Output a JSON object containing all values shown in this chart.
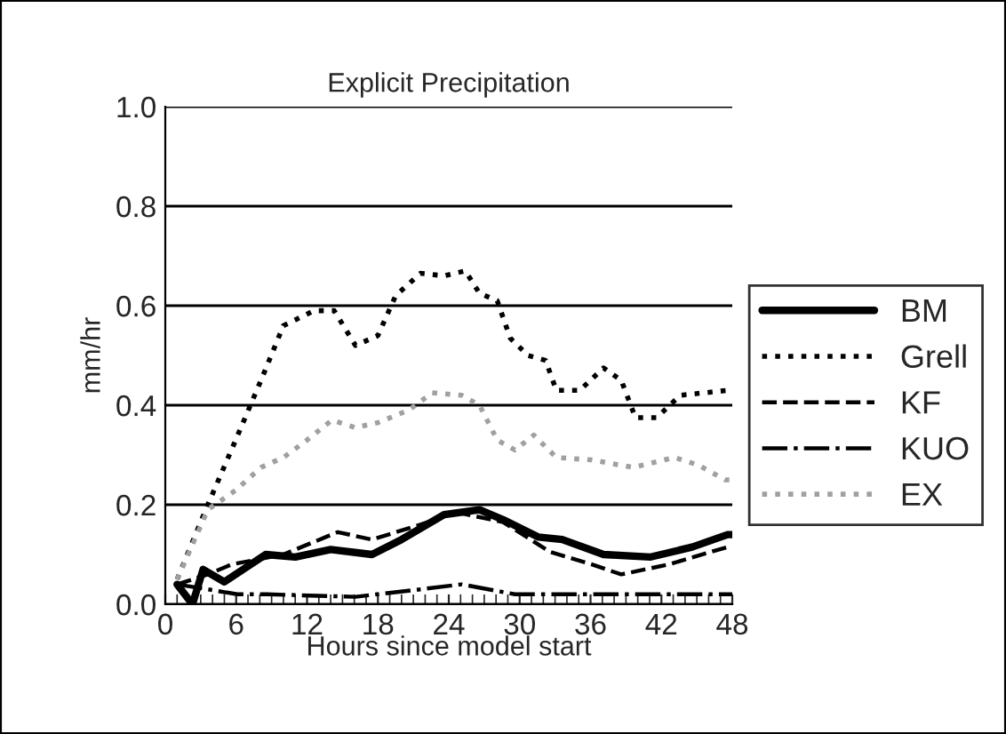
{
  "chart_data": {
    "type": "line",
    "title": "Explicit Precipitation",
    "xlabel": "Hours since model start",
    "ylabel": "mm/hr",
    "xlim": [
      0,
      48
    ],
    "xticks": [
      0,
      6,
      12,
      18,
      24,
      30,
      36,
      42,
      48
    ],
    "ylim": [
      0,
      1.0
    ],
    "yticks": [
      {
        "value": 0,
        "label": "0.0"
      },
      {
        "value": 0.2,
        "label": "0.2"
      },
      {
        "value": 0.4,
        "label": "0.4"
      },
      {
        "value": 0.6,
        "label": "0.6"
      },
      {
        "value": 0.8,
        "label": "0.8"
      },
      {
        "value": 1.0,
        "label": "1.0"
      }
    ],
    "grid": "y",
    "legend": "right",
    "marker": "none",
    "series": [
      {
        "name": "BM",
        "color": "#000000",
        "line_style": "solid",
        "x": [
          1,
          2.3,
          3.2,
          5,
          8.5,
          11,
          14,
          17.5,
          20,
          23.6,
          26.6,
          28.6,
          31.6,
          33.6,
          37.1,
          41.1,
          44.6,
          47.6,
          48
        ],
        "values": [
          0.04,
          0.0,
          0.07,
          0.045,
          0.1,
          0.095,
          0.11,
          0.1,
          0.13,
          0.18,
          0.19,
          0.17,
          0.135,
          0.13,
          0.1,
          0.095,
          0.115,
          0.14,
          0.14
        ]
      },
      {
        "name": "Grell",
        "color": "#000000",
        "line_style": "dotted",
        "x": [
          1,
          3.6,
          5.6,
          8.1,
          10,
          12.6,
          14.3,
          16.1,
          18,
          19.5,
          21.6,
          23.6,
          25.4,
          26.6,
          28.1,
          29.2,
          30.7,
          32.2,
          33.1,
          35.1,
          37.1,
          38.6,
          39.8,
          41.6,
          43.6,
          47.7,
          48
        ],
        "values": [
          0.05,
          0.2,
          0.31,
          0.45,
          0.56,
          0.59,
          0.59,
          0.52,
          0.54,
          0.62,
          0.665,
          0.66,
          0.67,
          0.625,
          0.61,
          0.535,
          0.5,
          0.49,
          0.43,
          0.43,
          0.475,
          0.45,
          0.375,
          0.375,
          0.42,
          0.43,
          0.43
        ]
      },
      {
        "name": "KF",
        "color": "#000000",
        "line_style": "dashed",
        "x": [
          1,
          3.6,
          5.6,
          10,
          14.6,
          17.5,
          21.6,
          24.6,
          28.6,
          32.6,
          36.1,
          38.6,
          42.6,
          47.6,
          48
        ],
        "values": [
          0.04,
          0.06,
          0.08,
          0.1,
          0.145,
          0.13,
          0.16,
          0.185,
          0.165,
          0.105,
          0.08,
          0.06,
          0.08,
          0.115,
          0.115
        ]
      },
      {
        "name": "KUO",
        "color": "#000000",
        "line_style": "dashdot",
        "x": [
          1,
          3.6,
          6.1,
          8.6,
          16.1,
          21.6,
          25.1,
          29.6,
          38.6,
          47.6,
          48
        ],
        "values": [
          0.04,
          0.03,
          0.02,
          0.02,
          0.015,
          0.03,
          0.04,
          0.02,
          0.02,
          0.02,
          0.02
        ]
      },
      {
        "name": "EX",
        "color": "#a0a0a0",
        "line_style": "dotted",
        "x": [
          1,
          3.6,
          6,
          8.1,
          10,
          12,
          14.1,
          16.1,
          18,
          20.6,
          22.6,
          25.1,
          26.6,
          28.1,
          29.6,
          31.2,
          33.1,
          36.1,
          39.6,
          43.1,
          45.1,
          47.4,
          48
        ],
        "values": [
          0.05,
          0.19,
          0.23,
          0.275,
          0.295,
          0.33,
          0.37,
          0.355,
          0.365,
          0.39,
          0.425,
          0.42,
          0.4,
          0.33,
          0.31,
          0.34,
          0.295,
          0.29,
          0.275,
          0.295,
          0.28,
          0.25,
          0.25
        ]
      }
    ]
  }
}
